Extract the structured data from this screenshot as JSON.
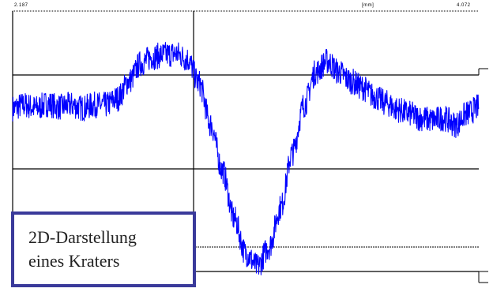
{
  "chart_data": {
    "type": "line",
    "title": "",
    "caption_lines": [
      "2D-Darstellung",
      "eines Kraters"
    ],
    "top_labels": {
      "left": "2.187",
      "middle": "[mm]",
      "right": "4.072"
    },
    "series": [
      {
        "color": "#0000ff",
        "x": [
          0,
          0.025,
          0.05,
          0.075,
          0.1,
          0.125,
          0.15,
          0.175,
          0.2,
          0.225,
          0.25,
          0.275,
          0.3,
          0.325,
          0.35,
          0.375,
          0.4,
          0.425,
          0.45,
          0.475,
          0.5,
          0.525,
          0.55,
          0.575,
          0.6,
          0.625,
          0.65,
          0.675,
          0.7,
          0.725,
          0.75,
          0.775,
          0.8,
          0.825,
          0.85,
          0.875,
          0.9,
          0.925,
          0.95,
          0.975,
          1.0
        ],
        "y": [
          0.355,
          0.37,
          0.355,
          0.375,
          0.36,
          0.37,
          0.355,
          0.37,
          0.37,
          0.4,
          0.48,
          0.56,
          0.59,
          0.6,
          0.605,
          0.58,
          0.47,
          0.28,
          0.07,
          -0.15,
          -0.31,
          -0.37,
          -0.28,
          -0.1,
          0.15,
          0.37,
          0.52,
          0.57,
          0.52,
          0.48,
          0.45,
          0.41,
          0.38,
          0.35,
          0.33,
          0.31,
          0.3,
          0.31,
          0.28,
          0.33,
          0.36
        ],
        "noise": 0.06
      }
    ],
    "xlim": [
      0,
      1
    ],
    "ylim": [
      -0.4,
      0.8
    ],
    "grid": true
  }
}
